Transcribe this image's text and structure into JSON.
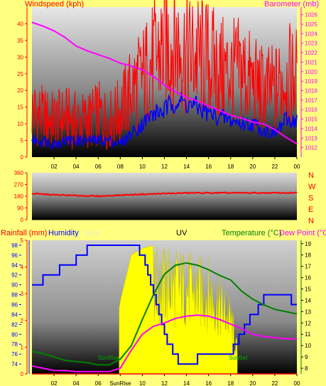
{
  "colors": {
    "background": "#ffff80",
    "wind_speed": "#ff0000",
    "wind_gust": "#0000ff",
    "barometer": "#ff00ff",
    "humidity": "#0000ff",
    "solar": "#ffff00",
    "temperature": "#008000",
    "dew_point": "#ff00ff",
    "rainfall": "#ff0000",
    "wind_dir": "#ff0000",
    "axis_red": "#ff0000"
  },
  "top_panel": {
    "left_label": "Windspeed (kph)",
    "right_label": "Barometer (mb)"
  },
  "dir_panel": {
    "compass": [
      "N",
      "W",
      "S",
      "E",
      "N"
    ]
  },
  "bottom_panel": {
    "rainfall_label": "Rainfall (mm)",
    "humidity_label": "Humidity",
    "solar_label": "Solar",
    "uv_label": "UV",
    "temperature_label": "Temperature (°C)",
    "dewpoint_label": "Dew Point (°C",
    "sunrise_label": "SunRise",
    "sunset_label": "SunSet"
  },
  "chart_data": [
    {
      "type": "line",
      "name": "wind-barometer",
      "x_ticks": [
        "02",
        "04",
        "06",
        "08",
        "10",
        "12",
        "14",
        "16",
        "18",
        "20",
        "22",
        "00"
      ],
      "ylabel": "Windspeed (kph)",
      "ylim": [
        0,
        45
      ],
      "y_ticks": [
        0,
        5,
        10,
        15,
        20,
        25,
        30,
        35,
        40
      ],
      "y2label": "Barometer (mb)",
      "y2lim": [
        1011,
        1026.8
      ],
      "y2_ticks": [
        1012,
        1013,
        1014,
        1015,
        1016,
        1017,
        1018,
        1019,
        1020,
        1021,
        1022,
        1023,
        1024,
        1025,
        1026
      ],
      "hours": [
        0,
        1,
        2,
        3,
        4,
        5,
        6,
        7,
        8,
        9,
        10,
        11,
        12,
        13,
        14,
        15,
        16,
        17,
        18,
        19,
        20,
        21,
        22,
        23,
        24
      ],
      "barometer": [
        1025.2,
        1024.8,
        1024.3,
        1023.6,
        1022.7,
        1022.2,
        1021.8,
        1021.4,
        1020.9,
        1020.6,
        1020.2,
        1019.5,
        1018.6,
        1017.9,
        1017.3,
        1016.9,
        1016.4,
        1015.9,
        1015.4,
        1015.1,
        1014.7,
        1014.5,
        1013.9,
        1013.1,
        1012.4
      ],
      "wind_speed": [
        14,
        12,
        11,
        12,
        11,
        11,
        13,
        11,
        14,
        20,
        24,
        29,
        33,
        34,
        31,
        30,
        29,
        26,
        25,
        26,
        22,
        20,
        20,
        24,
        24
      ],
      "wind_gust": [
        5,
        5,
        4,
        5,
        5,
        5,
        5,
        5,
        4,
        7,
        10,
        13,
        14,
        17,
        16,
        15,
        13,
        12,
        11,
        10,
        10,
        8,
        7,
        11,
        11
      ]
    },
    {
      "type": "line",
      "name": "wind-direction",
      "x_ticks": [
        "02",
        "04",
        "06",
        "08",
        "10",
        "12",
        "14",
        "16",
        "18",
        "20",
        "22",
        "00"
      ],
      "ylim": [
        0,
        360
      ],
      "y_ticks": [
        0,
        90,
        180,
        270,
        360
      ],
      "hours": [
        0,
        2,
        4,
        6,
        8,
        10,
        12,
        14,
        16,
        18,
        20,
        22,
        24
      ],
      "direction": [
        200,
        190,
        185,
        180,
        188,
        195,
        200,
        205,
        205,
        205,
        205,
        205,
        205
      ]
    },
    {
      "type": "line",
      "name": "rain-humidity-solar-temperature",
      "x_ticks": [
        "02",
        "04",
        "06",
        "SunRise",
        "10",
        "12",
        "14",
        "16",
        "18",
        "20",
        "22",
        "00"
      ],
      "rainfall_lim": [
        0,
        5
      ],
      "rainfall_ticks": [
        0,
        1,
        2,
        3,
        4,
        5
      ],
      "humidity_lim": [
        72,
        99
      ],
      "humidity_ticks": [
        74,
        76,
        78,
        80,
        82,
        84,
        86,
        88,
        90,
        92,
        94,
        96,
        98
      ],
      "temperature_lim": [
        7.5,
        19.3
      ],
      "temperature_ticks": [
        8,
        9,
        10,
        11,
        12,
        13,
        14,
        15,
        16,
        17,
        18,
        19
      ],
      "sunrise_hour": 7.9,
      "sunset_hour": 18.6,
      "hours": [
        0,
        1,
        2,
        3,
        4,
        5,
        6,
        7,
        8,
        9,
        10,
        11,
        12,
        13,
        14,
        15,
        16,
        17,
        18,
        19,
        20,
        21,
        22,
        23,
        24
      ],
      "humidity": [
        90,
        91,
        92,
        94,
        95,
        97,
        97,
        97,
        98,
        98,
        96,
        88,
        79,
        75,
        74,
        75,
        76,
        75,
        76,
        80,
        84,
        87,
        88,
        88,
        85
      ],
      "temperature": [
        9.5,
        9.3,
        9.0,
        8.7,
        8.6,
        8.5,
        8.3,
        8.3,
        8.8,
        10,
        12.3,
        14.5,
        16.3,
        17.1,
        17.3,
        17.1,
        16.7,
        16.2,
        15.8,
        14.8,
        14.1,
        13.6,
        13.2,
        13.0,
        12.8
      ],
      "dew_point": [
        8.2,
        8.0,
        7.8,
        7.8,
        7.7,
        7.7,
        7.7,
        7.7,
        8.0,
        9.6,
        11.0,
        11.7,
        12.0,
        12.4,
        12.6,
        12.7,
        12.6,
        12.3,
        11.9,
        11.5,
        11.0,
        10.8,
        10.7,
        10.6,
        10.6
      ],
      "solar_relative": [
        0,
        0,
        0,
        0,
        0,
        0,
        0,
        0,
        0.55,
        0.9,
        0.95,
        0.97,
        0.98,
        0.98,
        0.95,
        0.9,
        0.9,
        0.75,
        0.6,
        0,
        0,
        0,
        0,
        0,
        0
      ],
      "rainfall": [
        0,
        0,
        0,
        0,
        0,
        0,
        0,
        0,
        0,
        0,
        0,
        0,
        0,
        0,
        0,
        0,
        0,
        0,
        0,
        0,
        0,
        0,
        0,
        0,
        0
      ]
    }
  ]
}
